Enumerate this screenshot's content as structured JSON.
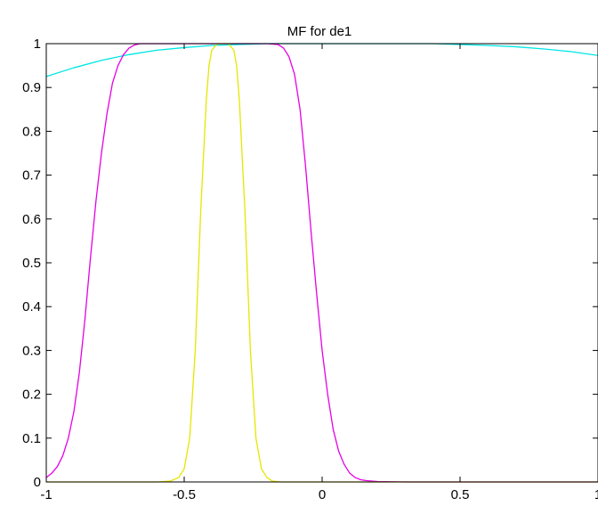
{
  "chart_data": {
    "type": "line",
    "title": "MF for de1",
    "xlabel": "",
    "ylabel": "",
    "xlim": [
      -1,
      1
    ],
    "ylim": [
      0,
      1
    ],
    "x_ticks": [
      -1,
      -0.5,
      0,
      0.5,
      1
    ],
    "x_tick_labels": [
      "-1",
      "-0.5",
      "0",
      "0.5",
      "1"
    ],
    "y_ticks": [
      0,
      0.1,
      0.2,
      0.3,
      0.4,
      0.5,
      0.6,
      0.7,
      0.8,
      0.9,
      1
    ],
    "y_tick_labels": [
      "0",
      "0.1",
      "0.2",
      "0.3",
      "0.4",
      "0.5",
      "0.6",
      "0.7",
      "0.8",
      "0.9",
      "1"
    ],
    "grid": false,
    "legend": "none",
    "series": [
      {
        "color": "#00e5e5",
        "x": [
          -1,
          -0.9,
          -0.8,
          -0.7,
          -0.6,
          -0.5,
          -0.4,
          -0.3,
          -0.2,
          -0.1,
          0,
          0.1,
          0.2,
          0.3,
          0.4,
          0.5,
          0.6,
          0.7,
          0.8,
          0.9,
          1
        ],
        "y": [
          0.925,
          0.945,
          0.962,
          0.975,
          0.985,
          0.991,
          0.996,
          0.998,
          1.0,
          1.0,
          1.0,
          1.0,
          1.0,
          1.0,
          1.0,
          0.998,
          0.996,
          0.993,
          0.988,
          0.982,
          0.973
        ]
      },
      {
        "color": "#e600e6",
        "x": [
          -1,
          -0.98,
          -0.96,
          -0.94,
          -0.92,
          -0.9,
          -0.88,
          -0.86,
          -0.84,
          -0.82,
          -0.8,
          -0.78,
          -0.76,
          -0.74,
          -0.72,
          -0.7,
          -0.68,
          -0.66,
          -0.64,
          -0.6,
          -0.5,
          -0.4,
          -0.3,
          -0.2,
          -0.16,
          -0.14,
          -0.12,
          -0.1,
          -0.08,
          -0.06,
          -0.04,
          -0.02,
          0,
          0.02,
          0.04,
          0.06,
          0.08,
          0.1,
          0.12,
          0.14,
          0.16,
          0.2,
          0.3,
          0.4,
          0.6,
          0.8,
          1
        ],
        "y": [
          0.01,
          0.02,
          0.035,
          0.06,
          0.1,
          0.16,
          0.25,
          0.37,
          0.51,
          0.64,
          0.75,
          0.84,
          0.91,
          0.95,
          0.975,
          0.99,
          0.997,
          1.0,
          1.0,
          1.0,
          1.0,
          1.0,
          1.0,
          1.0,
          0.998,
          0.99,
          0.97,
          0.93,
          0.85,
          0.72,
          0.57,
          0.43,
          0.3,
          0.2,
          0.12,
          0.07,
          0.04,
          0.02,
          0.01,
          0.005,
          0.003,
          0.001,
          0,
          0,
          0,
          0,
          0
        ]
      },
      {
        "color": "#e6e600",
        "x": [
          -1,
          -0.6,
          -0.55,
          -0.52,
          -0.5,
          -0.48,
          -0.46,
          -0.44,
          -0.42,
          -0.41,
          -0.4,
          -0.38,
          -0.36,
          -0.34,
          -0.32,
          -0.31,
          -0.3,
          -0.28,
          -0.26,
          -0.24,
          -0.22,
          -0.2,
          -0.18,
          -0.15,
          -0.1,
          0,
          0.5,
          1
        ],
        "y": [
          0,
          0,
          0.002,
          0.01,
          0.03,
          0.1,
          0.3,
          0.62,
          0.87,
          0.95,
          0.985,
          1.0,
          1.0,
          1.0,
          0.985,
          0.95,
          0.87,
          0.62,
          0.3,
          0.1,
          0.03,
          0.01,
          0.002,
          0,
          0,
          0,
          0,
          0
        ]
      }
    ]
  }
}
